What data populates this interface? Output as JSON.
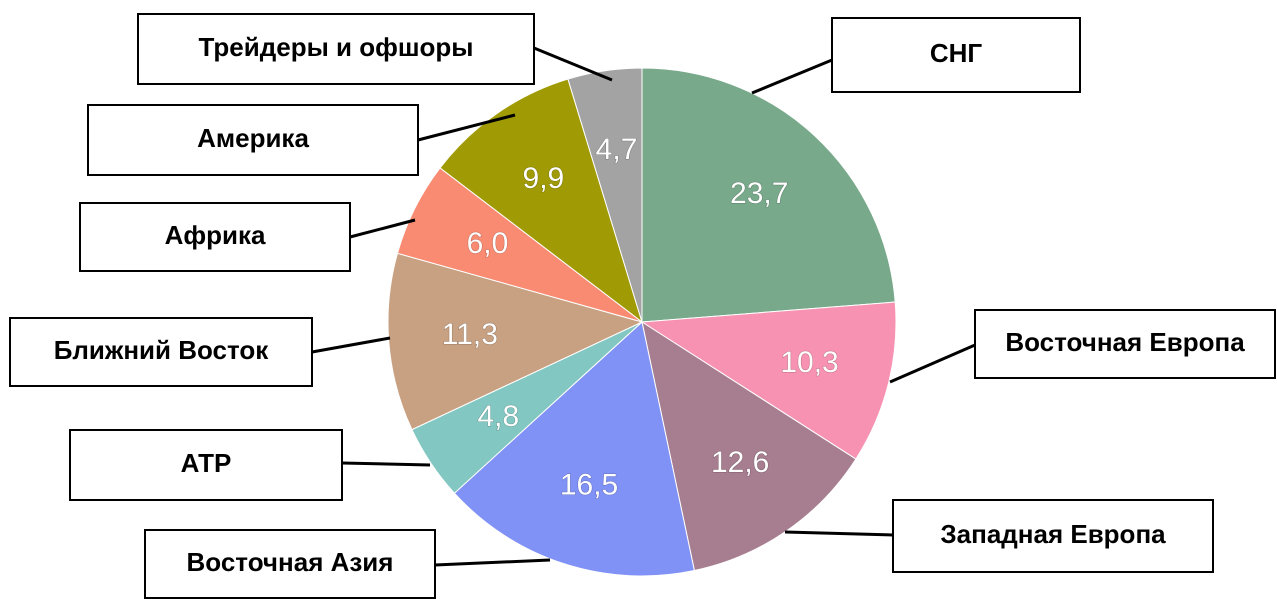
{
  "chart_data": {
    "type": "pie",
    "categories": [
      "СНГ",
      "Восточная Европа",
      "Западная Европа",
      "Восточная Азия",
      "АТР",
      "Ближний Восток",
      "Африка",
      "Америка",
      "Трейдеры и офшоры"
    ],
    "values": [
      23.7,
      10.3,
      12.6,
      16.5,
      4.8,
      11.3,
      6.0,
      9.9,
      4.7
    ],
    "value_labels": [
      "23,7",
      "10,3",
      "12,6",
      "16,5",
      "4,8",
      "11,3",
      "6,0",
      "9,9",
      "4,7"
    ],
    "colors": [
      "#79a98b",
      "#f792b2",
      "#a77d90",
      "#8192f7",
      "#82c7c1",
      "#c8a182",
      "#f98b72",
      "#a09b05",
      "#a3a3a3"
    ]
  }
}
